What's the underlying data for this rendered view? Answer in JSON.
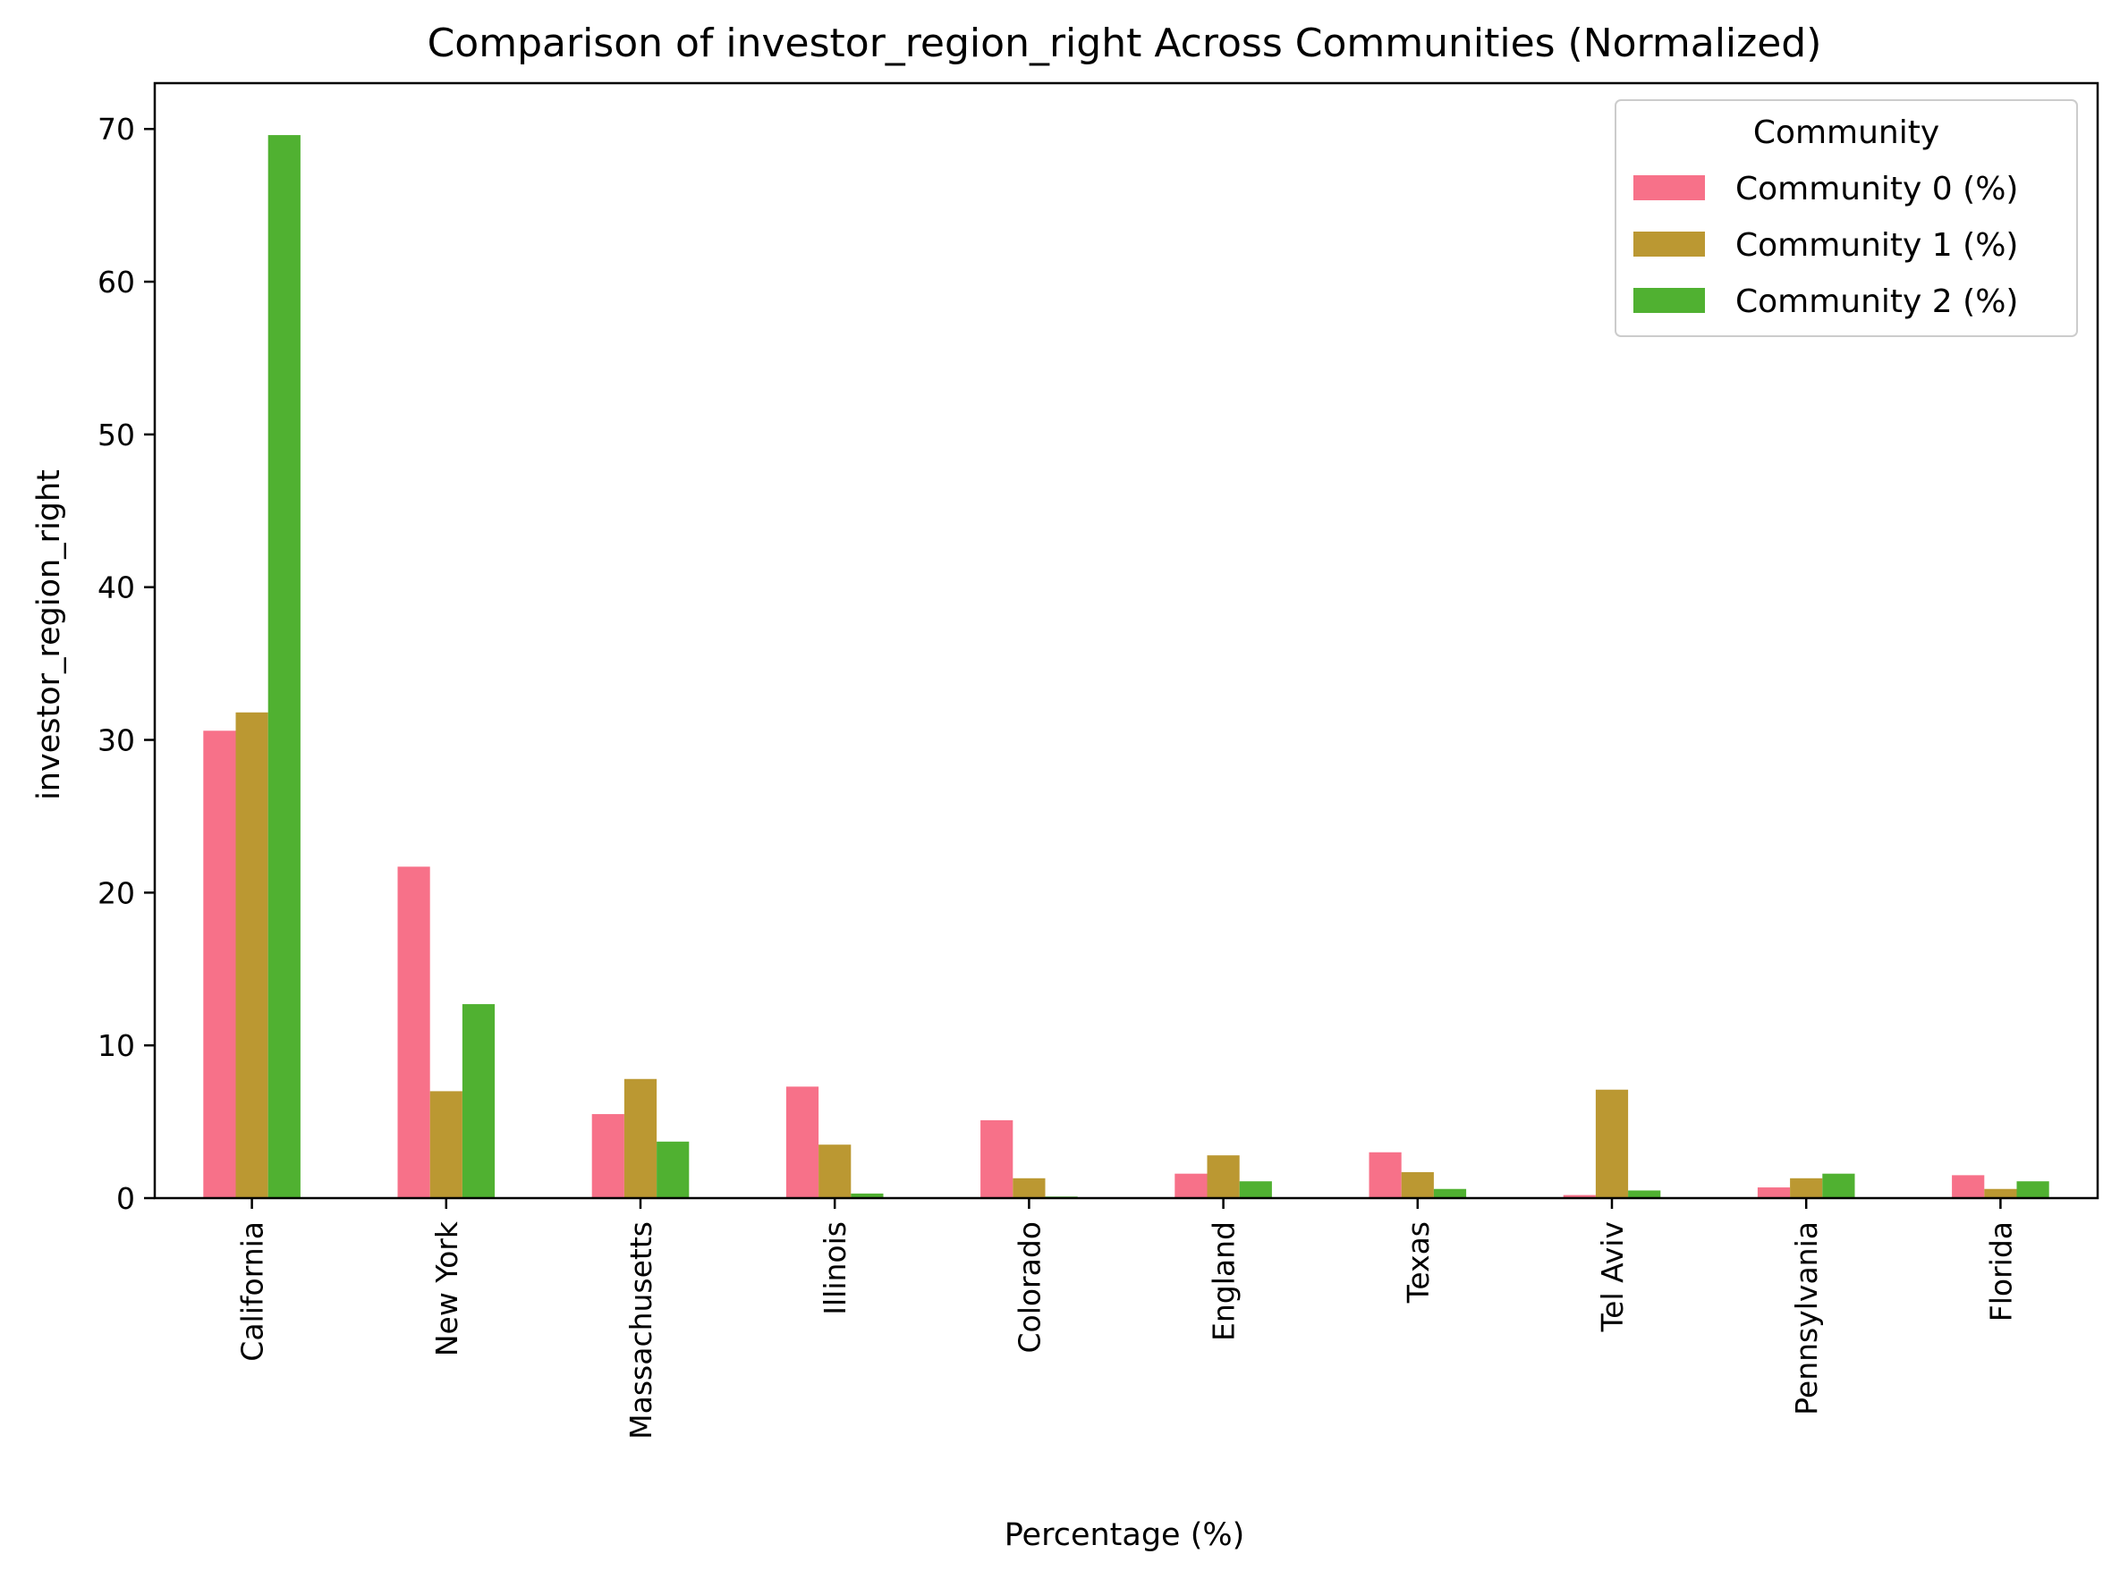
{
  "chart_data": {
    "type": "bar",
    "title": "Comparison of investor_region_right Across Communities (Normalized)",
    "xlabel": "Percentage (%)",
    "ylabel": "investor_region_right",
    "categories": [
      "California",
      "New York",
      "Massachusetts",
      "Illinois",
      "Colorado",
      "England",
      "Texas",
      "Tel Aviv",
      "Pennsylvania",
      "Florida"
    ],
    "series": [
      {
        "name": "Community 0 (%)",
        "color": "#f77189",
        "values": [
          30.6,
          21.7,
          5.5,
          7.3,
          5.1,
          1.6,
          3.0,
          0.2,
          0.7,
          1.5
        ]
      },
      {
        "name": "Community 1 (%)",
        "color": "#bb9832",
        "values": [
          31.8,
          7.0,
          7.8,
          3.5,
          1.3,
          2.8,
          1.7,
          7.1,
          1.3,
          0.6
        ]
      },
      {
        "name": "Community 2 (%)",
        "color": "#50b131",
        "values": [
          69.6,
          12.7,
          3.7,
          0.3,
          0.1,
          1.1,
          0.6,
          0.5,
          1.6,
          1.1
        ]
      }
    ],
    "ylim": [
      0,
      73
    ],
    "yticks": [
      0,
      10,
      20,
      30,
      40,
      50,
      60,
      70
    ],
    "legend": {
      "title": "Community",
      "position": "top-right"
    },
    "grid": false
  }
}
